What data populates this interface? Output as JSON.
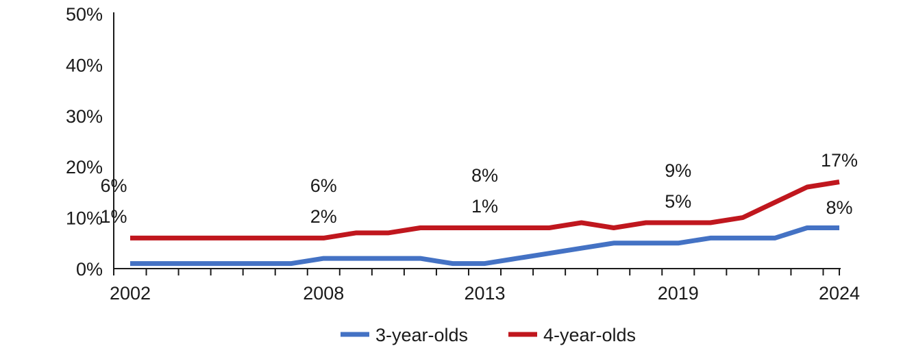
{
  "chart_data": {
    "type": "line",
    "title": "",
    "xlabel": "",
    "ylabel": "",
    "x": [
      2002,
      2003,
      2004,
      2005,
      2006,
      2007,
      2008,
      2009,
      2010,
      2011,
      2012,
      2013,
      2014,
      2015,
      2016,
      2017,
      2018,
      2019,
      2020,
      2021,
      2022,
      2023,
      2024
    ],
    "x_tick_labels": [
      "2002",
      "2008",
      "2013",
      "2019",
      "2024"
    ],
    "y_tick_labels": [
      "0%",
      "10%",
      "20%",
      "30%",
      "40%",
      "50%"
    ],
    "ylim": [
      0,
      50
    ],
    "grid": false,
    "legend_position": "bottom",
    "series": [
      {
        "name": "3-year-olds",
        "color": "#4472C4",
        "values": [
          1,
          1,
          1,
          1,
          1,
          1,
          2,
          2,
          2,
          2,
          1,
          1,
          2,
          3,
          4,
          5,
          5,
          5,
          6,
          6,
          6,
          8,
          8
        ],
        "labels": [
          {
            "x": 2002,
            "text": "1%"
          },
          {
            "x": 2008,
            "text": "2%"
          },
          {
            "x": 2013,
            "text": "1%"
          },
          {
            "x": 2019,
            "text": "5%"
          },
          {
            "x": 2024,
            "text": "8%"
          }
        ]
      },
      {
        "name": "4-year-olds",
        "color": "#C0171E",
        "values": [
          6,
          6,
          6,
          6,
          6,
          6,
          6,
          7,
          7,
          8,
          8,
          8,
          8,
          8,
          9,
          8,
          9,
          9,
          9,
          10,
          13,
          16,
          17
        ],
        "labels": [
          {
            "x": 2002,
            "text": "6%"
          },
          {
            "x": 2008,
            "text": "6%"
          },
          {
            "x": 2013,
            "text": "8%"
          },
          {
            "x": 2019,
            "text": "9%"
          },
          {
            "x": 2024,
            "text": "17%"
          }
        ]
      }
    ]
  }
}
